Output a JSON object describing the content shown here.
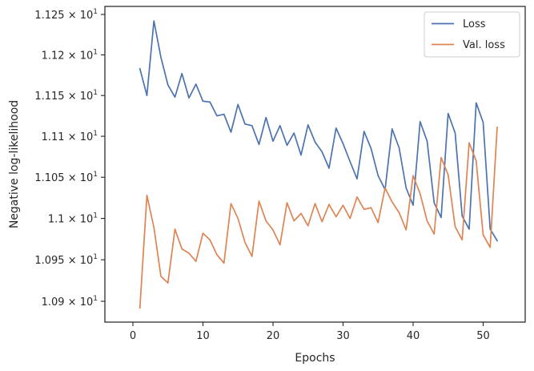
{
  "chart_data": {
    "type": "line",
    "title": "",
    "xlabel": "Epochs",
    "ylabel": "Negative log-likelihood",
    "xlim": [
      -4.0,
      56.0
    ],
    "ylim": [
      10.875,
      11.26
    ],
    "xticks": [
      0,
      10,
      20,
      30,
      40,
      50
    ],
    "xtick_labels": [
      "0",
      "10",
      "20",
      "30",
      "40",
      "50"
    ],
    "yticks": [
      10.9,
      10.95,
      11.0,
      11.05,
      11.1,
      11.15,
      11.2,
      11.25
    ],
    "ytick_mantissas": [
      "1.09",
      "1.095",
      "1.1",
      "1.105",
      "1.11",
      "1.115",
      "1.12",
      "1.125"
    ],
    "ytick_base": "10",
    "ytick_exponent": "1",
    "yscale": "log",
    "grid": false,
    "legend_position": "top-right",
    "x": [
      1,
      2,
      3,
      4,
      5,
      6,
      7,
      8,
      9,
      10,
      11,
      12,
      13,
      14,
      15,
      16,
      17,
      18,
      19,
      20,
      21,
      22,
      23,
      24,
      25,
      26,
      27,
      28,
      29,
      30,
      31,
      32,
      33,
      34,
      35,
      36,
      37,
      38,
      39,
      40,
      41,
      42,
      43,
      44,
      45,
      46,
      47,
      48,
      49,
      50,
      51,
      52
    ],
    "series": [
      {
        "name": "Loss",
        "color": "#4c72b0",
        "values": [
          11.183,
          11.15,
          11.242,
          11.197,
          11.163,
          11.148,
          11.177,
          11.147,
          11.164,
          11.143,
          11.142,
          11.125,
          11.127,
          11.105,
          11.139,
          11.115,
          11.113,
          11.09,
          11.123,
          11.094,
          11.113,
          11.089,
          11.104,
          11.077,
          11.114,
          11.093,
          11.081,
          11.061,
          11.11,
          11.091,
          11.069,
          11.048,
          11.106,
          11.085,
          11.052,
          11.035,
          11.109,
          11.086,
          11.037,
          11.016,
          11.118,
          11.094,
          11.019,
          11.001,
          11.128,
          11.104,
          11.003,
          10.987,
          11.141,
          11.117,
          10.987,
          10.973
        ]
      },
      {
        "name": "Val. loss",
        "color": "#dd8452",
        "values": [
          10.892,
          11.028,
          10.989,
          10.93,
          10.922,
          10.987,
          10.963,
          10.958,
          10.948,
          10.982,
          10.974,
          10.956,
          10.946,
          11.018,
          11.0,
          10.971,
          10.954,
          11.021,
          10.997,
          10.986,
          10.968,
          11.019,
          10.997,
          11.006,
          10.991,
          11.018,
          10.996,
          11.017,
          11.002,
          11.016,
          11.0,
          11.026,
          11.011,
          11.013,
          10.995,
          11.037,
          11.02,
          11.007,
          10.986,
          11.052,
          11.03,
          10.997,
          10.981,
          11.074,
          11.053,
          10.99,
          10.974,
          11.092,
          11.07,
          10.98,
          10.965,
          11.111
        ]
      }
    ]
  }
}
